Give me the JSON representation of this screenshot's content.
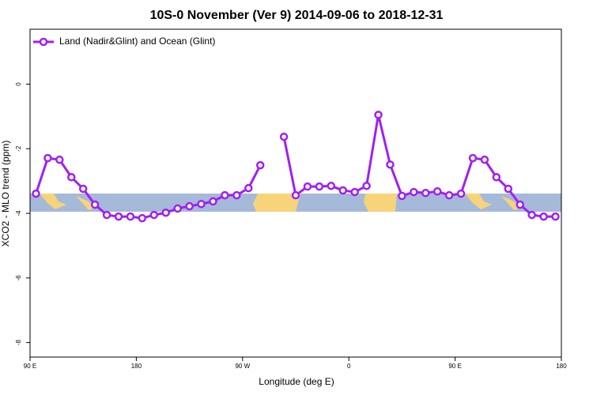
{
  "chart_data": {
    "type": "line",
    "title": "10S-0 November (Ver 9)   2014-09-06 to 2018-12-31",
    "xlabel": "Longitude (deg E)",
    "ylabel": "XCO2 - MLO trend (ppm)",
    "x": [
      95,
      105,
      115,
      125,
      135,
      145,
      155,
      165,
      175,
      185,
      195,
      205,
      215,
      225,
      235,
      245,
      255,
      265,
      275,
      285,
      295,
      305,
      315,
      325,
      335,
      345,
      355,
      365,
      375,
      385,
      395,
      405,
      415,
      425,
      435,
      445,
      455,
      465,
      475,
      485,
      495,
      505,
      515,
      525,
      535
    ],
    "series": [
      {
        "name": "Land (Nadir&Glint) and Ocean (Glint)",
        "color": "#a020f0",
        "values": [
          -3.39,
          -2.29,
          -2.34,
          -2.88,
          -3.24,
          -3.73,
          -4.05,
          -4.1,
          -4.1,
          -4.15,
          -4.05,
          -3.98,
          -3.85,
          -3.78,
          -3.71,
          -3.63,
          -3.44,
          -3.44,
          -3.22,
          -2.51,
          null,
          -1.63,
          -3.44,
          -3.17,
          -3.17,
          -3.15,
          -3.29,
          -3.34,
          -3.15,
          -0.95,
          -2.49,
          -3.46,
          -3.34,
          -3.37,
          -3.32,
          -3.44,
          -3.39,
          -2.29,
          -2.34,
          -2.88,
          -3.24,
          -3.73,
          -4.05,
          -4.1,
          -4.1
        ]
      }
    ],
    "xlim": [
      90,
      540
    ],
    "xticks": [
      {
        "value": 90,
        "label": "90 E"
      },
      {
        "value": 180,
        "label": "180"
      },
      {
        "value": 270,
        "label": "90 W"
      },
      {
        "value": 360,
        "label": "0"
      },
      {
        "value": 450,
        "label": "90 E"
      },
      {
        "value": 540,
        "label": "180"
      }
    ],
    "ylim": [
      -8.45,
      1.7
    ],
    "yticks": [
      0,
      -2,
      -4,
      -6,
      -8
    ],
    "legend": "top-left"
  }
}
